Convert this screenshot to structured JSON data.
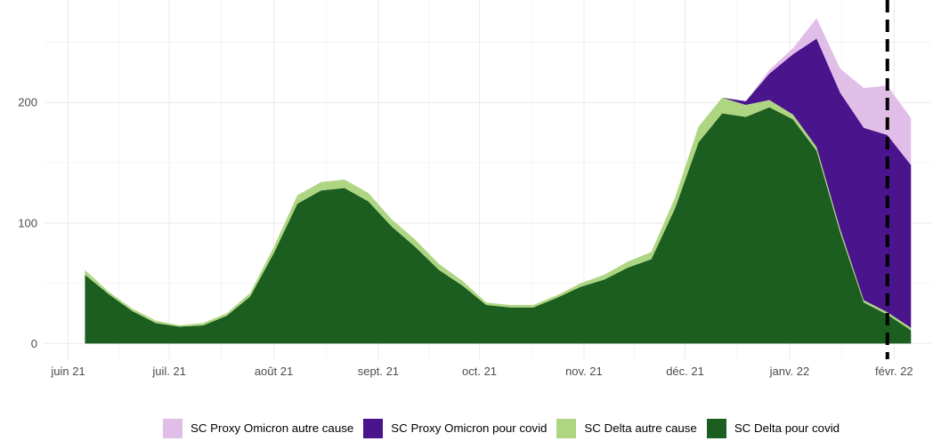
{
  "chart_data": {
    "type": "area",
    "stacked": true,
    "x": [
      "2021-06-06",
      "2021-06-13",
      "2021-06-20",
      "2021-06-27",
      "2021-07-04",
      "2021-07-11",
      "2021-07-18",
      "2021-07-25",
      "2021-08-01",
      "2021-08-08",
      "2021-08-15",
      "2021-08-22",
      "2021-08-29",
      "2021-09-05",
      "2021-09-12",
      "2021-09-19",
      "2021-09-26",
      "2021-10-03",
      "2021-10-10",
      "2021-10-17",
      "2021-10-24",
      "2021-10-31",
      "2021-11-07",
      "2021-11-14",
      "2021-11-21",
      "2021-11-28",
      "2021-12-05",
      "2021-12-12",
      "2021-12-19",
      "2021-12-26",
      "2022-01-02",
      "2022-01-09",
      "2022-01-16",
      "2022-01-23",
      "2022-01-30",
      "2022-02-06"
    ],
    "series": [
      {
        "name": "SC Proxy Omicron autre cause",
        "color": "#e1bee7",
        "values": [
          0,
          0,
          0,
          0,
          0,
          0,
          0,
          0,
          0,
          0,
          0,
          0,
          0,
          0,
          0,
          0,
          0,
          0,
          0,
          0,
          0,
          0,
          0,
          0,
          0,
          0,
          0,
          0,
          0,
          3,
          5,
          17,
          20,
          33,
          41,
          39
        ]
      },
      {
        "name": "SC Proxy Omicron pour covid",
        "color": "#4a148c",
        "values": [
          0,
          0,
          0,
          0,
          0,
          0,
          0,
          0,
          0,
          0,
          0,
          0,
          0,
          0,
          0,
          0,
          0,
          0,
          0,
          0,
          0,
          0,
          0,
          0,
          0,
          0,
          0,
          0,
          3,
          22,
          50,
          90,
          113,
          143,
          147,
          135
        ]
      },
      {
        "name": "SC Delta autre cause",
        "color": "#aed581",
        "values": [
          4,
          2,
          2,
          2,
          1,
          2,
          2,
          3,
          5,
          7,
          7,
          7,
          7,
          6,
          6,
          5,
          4,
          2,
          2,
          2,
          2,
          3,
          4,
          5,
          6,
          9,
          13,
          13,
          10,
          6,
          4,
          3,
          3,
          2,
          2,
          2
        ]
      },
      {
        "name": "SC Delta pour covid",
        "color": "#1b5e20",
        "values": [
          57,
          41,
          27,
          17,
          14,
          15,
          23,
          39,
          75,
          116,
          127,
          129,
          118,
          97,
          80,
          61,
          48,
          32,
          30,
          30,
          38,
          47,
          53,
          63,
          70,
          112,
          167,
          191,
          188,
          196,
          186,
          160,
          92,
          34,
          24,
          11
        ]
      }
    ],
    "x_ticks": [
      "juin 21",
      "juil. 21",
      "août 21",
      "sept. 21",
      "oct. 21",
      "nov. 21",
      "déc. 21",
      "janv. 22",
      "févr. 22"
    ],
    "x_tick_dates": [
      "2021-06-01",
      "2021-07-01",
      "2021-08-01",
      "2021-09-01",
      "2021-10-01",
      "2021-11-01",
      "2021-12-01",
      "2022-01-01",
      "2022-02-01"
    ],
    "y_ticks": [
      0,
      100,
      200
    ],
    "xlim": [
      "2021-05-25",
      "2022-02-12"
    ],
    "ylim": [
      -13,
      285
    ],
    "reference_line": {
      "x": "2022-01-30",
      "style": "dashed",
      "color": "#000000"
    },
    "grid": true,
    "legend": {
      "position": "bottom"
    }
  }
}
